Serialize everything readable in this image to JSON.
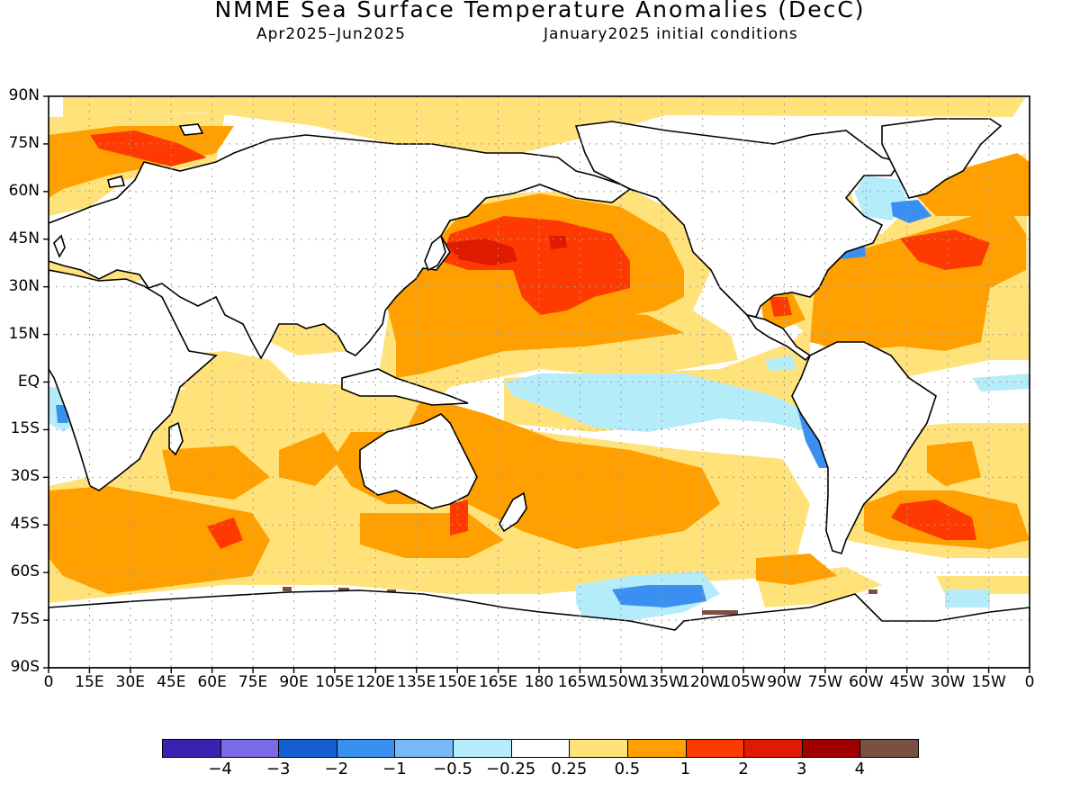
{
  "title": "NMME Sea Surface Temperature Anomalies (DecC)",
  "period": "Apr2025–Jun2025",
  "init": "January2025 initial conditions",
  "lat_labels": [
    "90N",
    "75N",
    "60N",
    "45N",
    "30N",
    "15N",
    "EQ",
    "15S",
    "30S",
    "45S",
    "60S",
    "75S",
    "90S"
  ],
  "lon_labels": [
    "0",
    "15E",
    "30E",
    "45E",
    "60E",
    "75E",
    "90E",
    "105E",
    "120E",
    "135E",
    "150E",
    "165E",
    "180",
    "165W",
    "150W",
    "135W",
    "120W",
    "105W",
    "90W",
    "75W",
    "60W",
    "45W",
    "30W",
    "15W",
    "0"
  ],
  "colorbar": {
    "colors": [
      "#3a22b0",
      "#7b6ae8",
      "#1560d0",
      "#3a90f0",
      "#78b8f5",
      "#b4ecfa",
      "#ffffff",
      "#ffe27a",
      "#ffa000",
      "#ff3a00",
      "#de1a00",
      "#a00000",
      "#7a5044"
    ],
    "labels": [
      "−4",
      "−3",
      "−2",
      "−1",
      "−0.5",
      "−0.25",
      "0.25",
      "0.5",
      "1",
      "2",
      "3",
      "4"
    ]
  },
  "map_colors": {
    "land_edge": "#000000",
    "grid": "#a0a0a0",
    "anom_0_25": "#ffe27a",
    "anom_0_5": "#ffa000",
    "anom_1": "#ff3a00",
    "anom_2": "#de1a00",
    "anom_neg_0_25": "#b4ecfa",
    "anom_neg_0_5": "#78b8f5",
    "anom_neg_1": "#3a90f0",
    "anom_neg_2": "#1560d0",
    "anom_4": "#7a5044"
  }
}
